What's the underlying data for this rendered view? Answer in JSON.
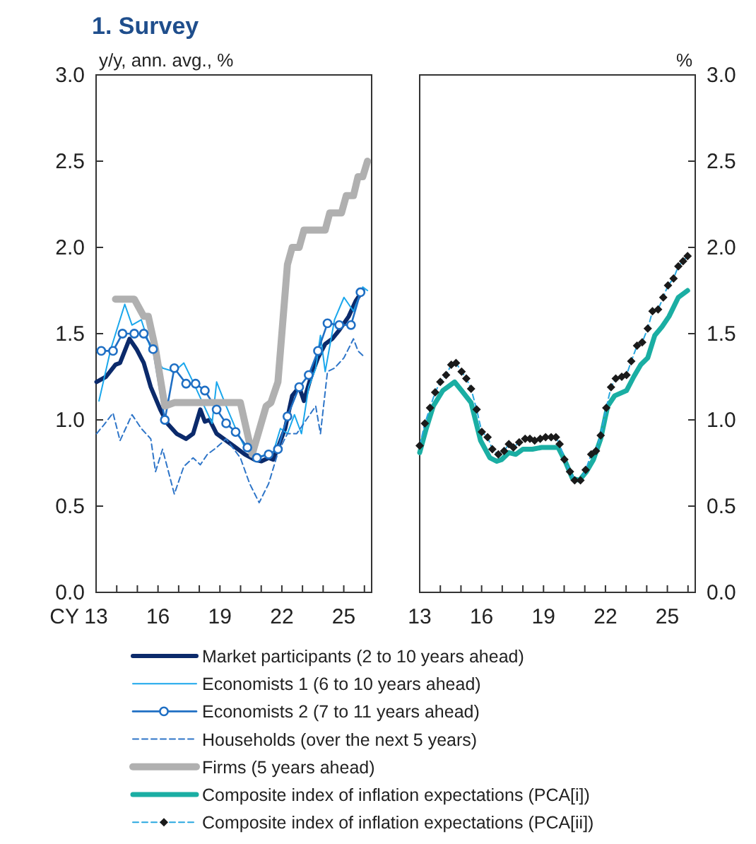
{
  "chart_data": [
    {
      "type": "line",
      "title": "1. Survey",
      "ylabel": "y/y, ann. avg., %",
      "xlabel": "CY",
      "xlim": [
        2013,
        2026.35
      ],
      "xticks": [
        {
          "value": 2013,
          "label": "13"
        },
        {
          "value": 2014,
          "label": null
        },
        {
          "value": 2015,
          "label": null
        },
        {
          "value": 2016,
          "label": "16"
        },
        {
          "value": 2017,
          "label": null
        },
        {
          "value": 2018,
          "label": null
        },
        {
          "value": 2019,
          "label": "19"
        },
        {
          "value": 2020,
          "label": null
        },
        {
          "value": 2021,
          "label": null
        },
        {
          "value": 2022,
          "label": "22"
        },
        {
          "value": 2023,
          "label": null
        },
        {
          "value": 2024,
          "label": null
        },
        {
          "value": 2025,
          "label": "25"
        },
        {
          "value": 2026,
          "label": null
        }
      ],
      "ylim": [
        0,
        3
      ],
      "yticks": [
        {
          "value": 0,
          "label": "0.0"
        },
        {
          "value": 0.5,
          "label": "0.5"
        },
        {
          "value": 1,
          "label": "1.0"
        },
        {
          "value": 1.5,
          "label": "1.5"
        },
        {
          "value": 2,
          "label": "2.0"
        },
        {
          "value": 2.5,
          "label": "2.5"
        },
        {
          "value": 3,
          "label": "3.0"
        }
      ],
      "grid": false,
      "legend": "bottom",
      "series": [
        {
          "name": "Market participants (2 to 10 years ahead)",
          "color": "#0b2a6b",
          "line_style": "solid",
          "marker": "none",
          "x": [
            2013.02,
            2013.48,
            2013.94,
            2014.16,
            2014.62,
            2014.96,
            2015.31,
            2015.65,
            2016.11,
            2016.45,
            2016.9,
            2017.36,
            2017.7,
            2018.05,
            2018.27,
            2018.5,
            2018.84,
            2019.3,
            2019.76,
            2020.21,
            2020.67,
            2021.01,
            2021.36,
            2021.58,
            2021.81,
            2022.16,
            2022.5,
            2022.84,
            2023.07,
            2023.41,
            2023.75,
            2024.1,
            2024.44,
            2024.78,
            2025.24,
            2025.58,
            2025.92
          ],
          "values": [
            1.22,
            1.25,
            1.32,
            1.33,
            1.47,
            1.41,
            1.33,
            1.19,
            1.06,
            0.98,
            0.92,
            0.89,
            0.92,
            1.06,
            0.99,
            1.0,
            0.92,
            0.88,
            0.84,
            0.8,
            0.77,
            0.76,
            0.78,
            0.77,
            0.84,
            0.95,
            1.14,
            1.19,
            1.11,
            1.25,
            1.36,
            1.44,
            1.47,
            1.52,
            1.6,
            1.69,
            1.75
          ]
        },
        {
          "name": "Economists 1 (6 to 10 years ahead)",
          "color": "#1aa7ec",
          "line_style": "solid",
          "marker": "none",
          "x": [
            2013.14,
            2013.71,
            2014.39,
            2014.74,
            2015.19,
            2015.65,
            2016.22,
            2016.79,
            2017.25,
            2017.7,
            2018.62,
            2018.84,
            2019.3,
            2019.76,
            2020.21,
            2020.67,
            2021.58,
            2021.93,
            2022.27,
            2022.61,
            2022.95,
            2023.3,
            2023.64,
            2023.87,
            2024.1,
            2024.55,
            2025.01,
            2025.47,
            2025.92,
            2026.15
          ],
          "values": [
            1.11,
            1.41,
            1.67,
            1.55,
            1.58,
            1.41,
            1.3,
            1.28,
            1.33,
            1.22,
            0.98,
            1.22,
            1.08,
            0.95,
            0.84,
            0.78,
            0.81,
            0.95,
            0.92,
            1.03,
            0.92,
            1.19,
            1.3,
            1.49,
            1.28,
            1.58,
            1.71,
            1.63,
            1.77,
            1.75
          ]
        },
        {
          "name": "Economists 2 (7 to 11 years ahead)",
          "color": "#1f6fc4",
          "line_style": "solid",
          "marker": "circle",
          "x": [
            2013.25,
            2013.82,
            2014.28,
            2014.85,
            2015.31,
            2015.76,
            2016.33,
            2016.79,
            2017.36,
            2017.82,
            2018.27,
            2018.84,
            2019.3,
            2019.76,
            2020.33,
            2020.79,
            2021.36,
            2021.81,
            2022.27,
            2022.84,
            2023.3,
            2023.75,
            2024.21,
            2024.78,
            2025.35,
            2025.81
          ],
          "values": [
            1.4,
            1.4,
            1.5,
            1.5,
            1.5,
            1.41,
            1.0,
            1.3,
            1.21,
            1.21,
            1.17,
            1.06,
            0.98,
            0.93,
            0.84,
            0.78,
            0.8,
            0.83,
            1.02,
            1.19,
            1.26,
            1.4,
            1.56,
            1.55,
            1.55,
            1.74
          ]
        },
        {
          "name": "Households (over the next 5 years)",
          "color": "#2e75c8",
          "line_style": "dashed",
          "marker": "none",
          "x": [
            2013.02,
            2013.37,
            2013.82,
            2014.16,
            2014.74,
            2015.19,
            2015.65,
            2015.88,
            2016.22,
            2016.79,
            2017.25,
            2017.7,
            2018.05,
            2018.39,
            2018.84,
            2019.3,
            2019.99,
            2020.44,
            2020.9,
            2021.36,
            2021.81,
            2022.27,
            2022.72,
            2023.18,
            2023.64,
            2023.87,
            2024.21,
            2024.55,
            2025.01,
            2025.47,
            2025.69,
            2026.04
          ],
          "values": [
            0.92,
            0.97,
            1.04,
            0.88,
            1.03,
            0.95,
            0.89,
            0.7,
            0.83,
            0.57,
            0.73,
            0.78,
            0.74,
            0.8,
            0.84,
            0.89,
            0.78,
            0.63,
            0.52,
            0.63,
            0.81,
            0.92,
            0.92,
            1.0,
            1.08,
            0.92,
            1.28,
            1.3,
            1.36,
            1.47,
            1.4,
            1.36
          ]
        },
        {
          "name": "Firms (5 years ahead)",
          "color": "#b0b0b0",
          "line_style": "solid",
          "marker": "none",
          "x": [
            2013.94,
            2014.85,
            2015.31,
            2015.53,
            2015.88,
            2016.33,
            2016.79,
            2019.99,
            2020.56,
            2021.24,
            2021.47,
            2021.81,
            2022.27,
            2022.5,
            2022.84,
            2023.07,
            2024.1,
            2024.32,
            2024.89,
            2025.12,
            2025.47,
            2025.69,
            2025.92,
            2026.15
          ],
          "values": [
            1.7,
            1.7,
            1.6,
            1.6,
            1.41,
            1.08,
            1.1,
            1.1,
            0.8,
            1.08,
            1.1,
            1.22,
            1.9,
            2.0,
            2.0,
            2.1,
            2.1,
            2.2,
            2.2,
            2.3,
            2.3,
            2.41,
            2.41,
            2.5
          ]
        }
      ]
    },
    {
      "type": "line",
      "y2label": "%",
      "xlim": [
        2013,
        2026.35
      ],
      "xticks": [
        {
          "value": 2013,
          "label": "13"
        },
        {
          "value": 2014,
          "label": null
        },
        {
          "value": 2015,
          "label": null
        },
        {
          "value": 2016,
          "label": "16"
        },
        {
          "value": 2017,
          "label": null
        },
        {
          "value": 2018,
          "label": null
        },
        {
          "value": 2019,
          "label": "19"
        },
        {
          "value": 2020,
          "label": null
        },
        {
          "value": 2021,
          "label": null
        },
        {
          "value": 2022,
          "label": "22"
        },
        {
          "value": 2023,
          "label": null
        },
        {
          "value": 2024,
          "label": null
        },
        {
          "value": 2025,
          "label": "25"
        },
        {
          "value": 2026,
          "label": null
        }
      ],
      "y2lim": [
        0,
        3
      ],
      "y2ticks": [
        {
          "value": 0,
          "label": "0.0"
        },
        {
          "value": 0.5,
          "label": "0.5"
        },
        {
          "value": 1,
          "label": "1.0"
        },
        {
          "value": 1.5,
          "label": "1.5"
        },
        {
          "value": 2,
          "label": "2.0"
        },
        {
          "value": 2.5,
          "label": "2.5"
        },
        {
          "value": 3,
          "label": "3.0"
        }
      ],
      "grid": false,
      "legend": "bottom",
      "series": [
        {
          "name": "Composite index of inflation expectations (PCA[i])",
          "color": "#1aaea3",
          "axis": "y2",
          "line_style": "solid",
          "marker": "none",
          "x": [
            2013.0,
            2013.32,
            2013.66,
            2014.12,
            2014.69,
            2015.03,
            2015.49,
            2015.95,
            2016.4,
            2016.74,
            2016.97,
            2017.32,
            2017.66,
            2018.0,
            2018.46,
            2018.91,
            2019.71,
            2020.05,
            2020.4,
            2020.74,
            2021.08,
            2021.42,
            2021.77,
            2022.11,
            2022.45,
            2023.02,
            2023.37,
            2023.71,
            2024.05,
            2024.39,
            2024.74,
            2025.08,
            2025.53,
            2025.98
          ],
          "values": [
            0.81,
            0.95,
            1.08,
            1.17,
            1.22,
            1.17,
            1.1,
            0.88,
            0.78,
            0.76,
            0.77,
            0.81,
            0.8,
            0.83,
            0.83,
            0.84,
            0.84,
            0.76,
            0.66,
            0.65,
            0.7,
            0.77,
            0.89,
            1.08,
            1.14,
            1.17,
            1.25,
            1.32,
            1.36,
            1.49,
            1.54,
            1.6,
            1.71,
            1.75
          ]
        },
        {
          "name": "Composite index of inflation expectations (PCA[ii])",
          "color": "#1a1a1a",
          "axis": "y2",
          "line_style": "dashed",
          "marker": "diamond",
          "x": [
            2013.0,
            2013.25,
            2013.5,
            2013.75,
            2014.0,
            2014.28,
            2014.53,
            2014.76,
            2015.03,
            2015.26,
            2015.49,
            2015.76,
            2016.01,
            2016.29,
            2016.52,
            2016.81,
            2017.09,
            2017.32,
            2017.54,
            2017.82,
            2018.11,
            2018.34,
            2018.57,
            2018.84,
            2019.1,
            2019.37,
            2019.6,
            2019.78,
            2020.01,
            2020.28,
            2020.51,
            2020.79,
            2021.04,
            2021.31,
            2021.54,
            2021.77,
            2022.04,
            2022.27,
            2022.5,
            2022.79,
            2023.02,
            2023.25,
            2023.53,
            2023.78,
            2024.05,
            2024.28,
            2024.55,
            2024.8,
            2025.03,
            2025.3,
            2025.53,
            2025.76,
            2025.98
          ],
          "values": [
            0.85,
            0.98,
            1.07,
            1.16,
            1.22,
            1.26,
            1.32,
            1.33,
            1.28,
            1.24,
            1.18,
            1.06,
            0.93,
            0.9,
            0.83,
            0.8,
            0.82,
            0.86,
            0.84,
            0.87,
            0.89,
            0.89,
            0.88,
            0.89,
            0.9,
            0.9,
            0.9,
            0.86,
            0.77,
            0.7,
            0.65,
            0.65,
            0.71,
            0.8,
            0.82,
            0.91,
            1.07,
            1.19,
            1.24,
            1.25,
            1.26,
            1.34,
            1.43,
            1.45,
            1.53,
            1.63,
            1.64,
            1.71,
            1.78,
            1.82,
            1.89,
            1.92,
            1.95
          ]
        }
      ]
    }
  ]
}
